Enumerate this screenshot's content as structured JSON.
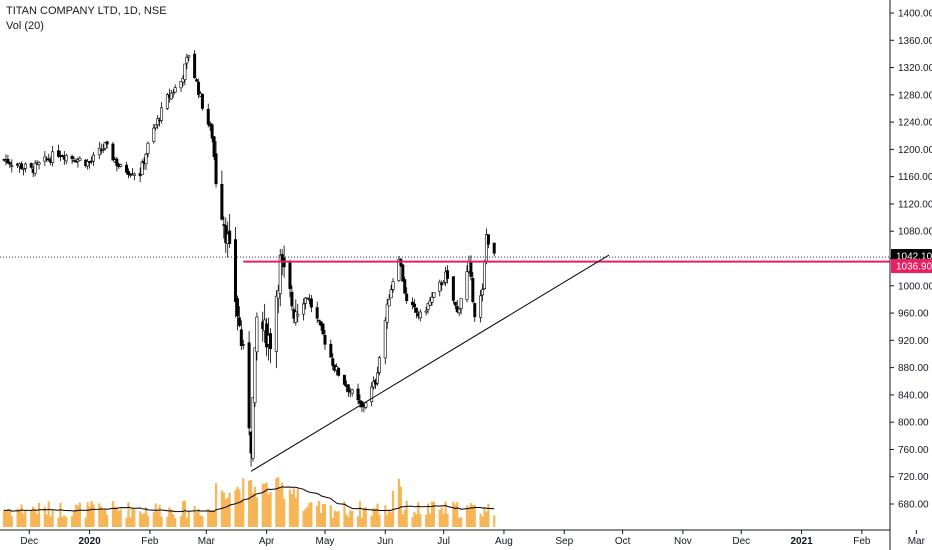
{
  "header": {
    "symbol_title": "TITAN COMPANY LTD, 1D, NSE",
    "volume_label": "Vol (20)"
  },
  "colors": {
    "candle_up_fill": "#ffffff",
    "candle_down_fill": "#000000",
    "candle_outline": "#000000",
    "volume_bar": "#f5a93c",
    "volume_ma": "#000000",
    "resistance_line": "#e91e63",
    "trend_line": "#000000",
    "last_price_tag_bg": "#000000",
    "level_tag_bg": "#e91e63"
  },
  "chart_data": {
    "type": "candlestick",
    "title": "TITAN COMPANY LTD, 1D, NSE",
    "xlabel": "",
    "ylabel": "",
    "ylim": [
      660,
      1420
    ],
    "y_ticks": [
      "1400.00",
      "1360.00",
      "1320.00",
      "1280.00",
      "1240.00",
      "1200.00",
      "1160.00",
      "1120.00",
      "1080.00",
      "1040.00",
      "1000.00",
      "960.00",
      "920.00",
      "880.00",
      "840.00",
      "800.00",
      "760.00",
      "720.00",
      "680.00"
    ],
    "x_ticks": [
      "Dec",
      "2020",
      "Feb",
      "Mar",
      "Apr",
      "May",
      "Jun",
      "Jul",
      "Aug",
      "Sep",
      "Oct",
      "Nov",
      "Dec",
      "2021",
      "Feb",
      "Mar"
    ],
    "price_labels": {
      "last": "1042.10",
      "level": "1036.90"
    },
    "last_price": 1042.1,
    "horizontal_level": 1036.9,
    "trendline": {
      "from": {
        "date": "2020-03-24",
        "price": 728
      },
      "to": {
        "date": "2020-09-24",
        "price": 1045
      }
    },
    "volume_ma_period": 20,
    "grid": false,
    "series": [
      {
        "name": "Vol (20)",
        "role": "volume"
      }
    ]
  }
}
